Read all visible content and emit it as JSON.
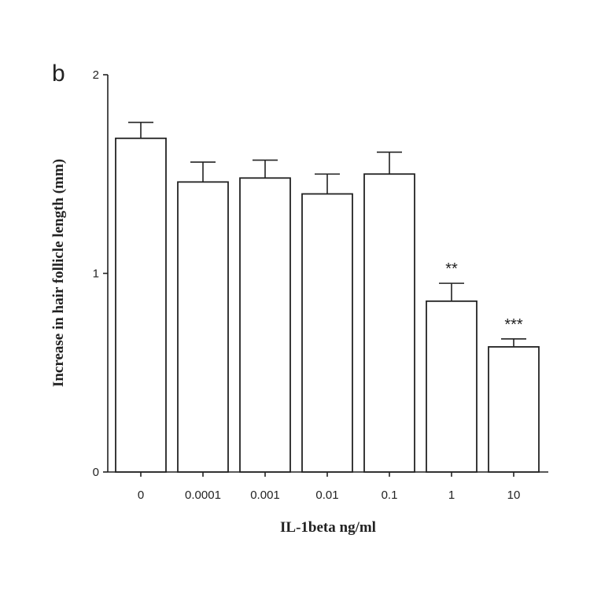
{
  "chart_data": {
    "type": "bar",
    "panel_label": "b",
    "categories": [
      "0",
      "0.0001",
      "0.001",
      "0.01",
      "0.1",
      "1",
      "10"
    ],
    "values": [
      1.68,
      1.46,
      1.48,
      1.4,
      1.5,
      0.86,
      0.63
    ],
    "error": [
      0.08,
      0.1,
      0.09,
      0.1,
      0.11,
      0.09,
      0.04
    ],
    "annotations": [
      "",
      "",
      "",
      "",
      "",
      "**",
      "***"
    ],
    "xlabel": "IL-1beta ng/ml",
    "ylabel": "Increase in hair follicle length (mm)",
    "ylim": [
      0,
      2
    ],
    "yticks": [
      "0",
      "1",
      "2"
    ],
    "grid": false,
    "legend": "none"
  }
}
